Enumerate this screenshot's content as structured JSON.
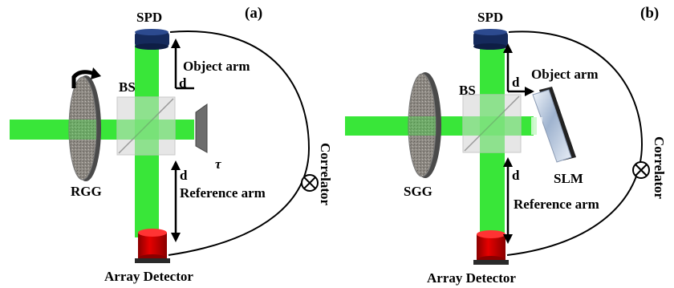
{
  "panels": [
    {
      "tag": "(a)",
      "detector_top": "SPD",
      "detector_bottom": "Array Detector",
      "splitter": "BS",
      "object_arm": "Object arm",
      "reference_arm": "Reference arm",
      "arm_length_object": "d",
      "arm_length_reference": "d",
      "diffuser": "RGG",
      "delay": "τ",
      "correlator": "Correlator"
    },
    {
      "tag": "(b)",
      "detector_top": "SPD",
      "detector_bottom": "Array Detector",
      "splitter": "BS",
      "object_arm": "Object arm",
      "reference_arm": "Reference arm",
      "arm_length_object": "d",
      "arm_length_reference": "d",
      "diffuser": "SGG",
      "modulator": "SLM",
      "correlator": "Correlator"
    }
  ],
  "colors": {
    "beam": "#39e639",
    "beam_light": "#9df09d",
    "spd": "#1b2e63",
    "array_detector": "#d40000",
    "cube": "#d9d9d9"
  },
  "icons": {
    "rotation": "curved-arrow-icon",
    "correlator": "circle-cross-icon"
  }
}
